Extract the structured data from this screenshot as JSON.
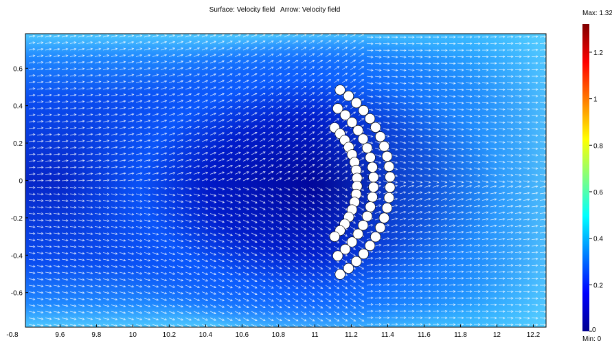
{
  "chart_data": {
    "type": "heatmap",
    "title": "Surface: Velocity field   Arrow: Velocity field",
    "xlim": [
      9.41,
      12.27
    ],
    "ylim": [
      -0.785,
      0.785
    ],
    "x_ticks": [
      "9.6",
      "9.8",
      "10",
      "10.2",
      "10.4",
      "10.6",
      "10.8",
      "11",
      "11.2",
      "11.4",
      "11.6",
      "11.8",
      "12",
      "12.2"
    ],
    "x_tick_values": [
      9.6,
      9.8,
      10.0,
      10.2,
      10.4,
      10.6,
      10.8,
      11.0,
      11.2,
      11.4,
      11.6,
      11.8,
      12.0,
      12.2
    ],
    "y_ticks": [
      "0.6",
      "0.4",
      "0.2",
      "0",
      "-0.2",
      "-0.4",
      "-0.6"
    ],
    "y_tick_values": [
      0.6,
      0.4,
      0.2,
      0.0,
      -0.2,
      -0.4,
      -0.6
    ],
    "corner_label": "-0.8",
    "colorbar": {
      "max_label": "Max: 1.321",
      "min_label": "Min: 0",
      "max": 1.321,
      "min": 0,
      "colormap": "jet",
      "ticks": [
        "1.2",
        "1",
        "0.8",
        "0.6",
        "0.4",
        "0.2",
        "0"
      ],
      "tick_values": [
        1.2,
        1.0,
        0.8,
        0.6,
        0.4,
        0.2,
        0.0
      ]
    },
    "arrows": {
      "color": "#ffffff",
      "direction": "left-to-right, deflected around obstacle"
    },
    "obstacle": {
      "shape": "crescent of circular cylinders",
      "fill": "#ffffff",
      "cylinder_rows": [
        {
          "name": "outer",
          "count": 22
        },
        {
          "name": "middle",
          "count": 18
        },
        {
          "name": "inner",
          "count": 16
        }
      ]
    },
    "grid": false,
    "legend": "colorbar right"
  },
  "colors": {
    "surface_low": "#00008f",
    "surface_mid": "#0a5aff",
    "surface_high": "#5fd2ff",
    "arrow": "#ffffff",
    "obstacle": "#ffffff"
  }
}
